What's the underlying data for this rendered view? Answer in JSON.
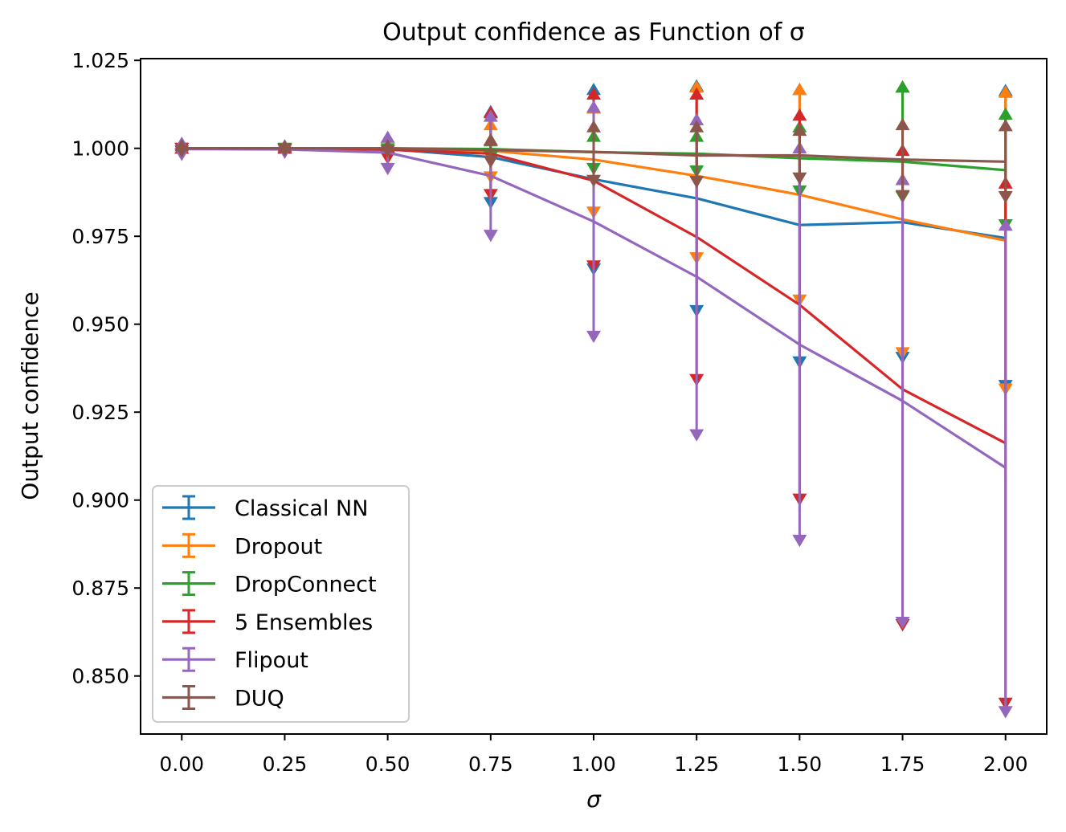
{
  "chart_data": {
    "type": "line",
    "title": "Output confidence as Function of σ",
    "xlabel": "σ",
    "ylabel": "Output confidence",
    "xlim": [
      -0.1,
      2.1
    ],
    "ylim": [
      0.8335,
      1.0255
    ],
    "x": [
      0.0,
      0.25,
      0.5,
      0.75,
      1.0,
      1.25,
      1.5,
      1.75,
      2.0
    ],
    "xticks": [
      "0.00",
      "0.25",
      "0.50",
      "0.75",
      "1.00",
      "1.25",
      "1.50",
      "1.75",
      "2.00"
    ],
    "yticks": [
      "0.850",
      "0.875",
      "0.900",
      "0.925",
      "0.950",
      "0.975",
      "1.000",
      "1.025"
    ],
    "legend_position": "lower-left",
    "series": [
      {
        "name": "Classical NN",
        "color": "#1f77b4",
        "values": [
          1.0,
          1.0,
          0.9998,
          0.9975,
          0.9912,
          0.9858,
          0.9782,
          0.979,
          0.9745
        ],
        "upper": [
          1.0001,
          1.0001,
          1.0003,
          1.0105,
          1.0168,
          1.0178,
          1.0168,
          1.0175,
          1.0165
        ],
        "lower": [
          0.9999,
          0.9999,
          0.9993,
          0.9845,
          0.9656,
          0.9538,
          0.9392,
          0.9405,
          0.9325
        ]
      },
      {
        "name": "Dropout",
        "color": "#ff7f0e",
        "values": [
          1.0,
          1.0,
          0.9999,
          0.9993,
          0.9968,
          0.9922,
          0.9868,
          0.9798,
          0.9738
        ],
        "upper": [
          1.0001,
          1.0001,
          1.0004,
          1.0068,
          1.0115,
          1.0175,
          1.0168,
          1.0175,
          1.016
        ],
        "lower": [
          0.9999,
          0.9999,
          0.9994,
          0.9918,
          0.9818,
          0.9688,
          0.9568,
          0.9418,
          0.9315
        ]
      },
      {
        "name": "DropConnect",
        "color": "#2ca02c",
        "values": [
          1.0,
          1.0,
          1.0,
          0.9998,
          0.9989,
          0.9985,
          0.9972,
          0.9962,
          0.9938
        ],
        "upper": [
          1.0001,
          1.0001,
          1.0002,
          1.0022,
          1.0035,
          1.0035,
          1.0062,
          1.0175,
          1.0098
        ],
        "lower": [
          0.9999,
          0.9999,
          0.9998,
          0.9975,
          0.9942,
          0.9935,
          0.9878,
          0.9862,
          0.9782
        ]
      },
      {
        "name": "5 Ensembles",
        "color": "#d62728",
        "values": [
          1.0,
          0.9999,
          0.9996,
          0.9985,
          0.9908,
          0.9748,
          0.9555,
          0.9315,
          0.9162
        ],
        "upper": [
          1.0001,
          1.0001,
          1.0004,
          1.0102,
          1.0155,
          1.0155,
          1.0095,
          0.9995,
          0.9902
        ],
        "lower": [
          0.9999,
          0.9997,
          0.9972,
          0.9868,
          0.9665,
          0.9342,
          0.9002,
          0.8645,
          0.8422
        ]
      },
      {
        "name": "Flipout",
        "color": "#9467bd",
        "values": [
          0.9998,
          0.9997,
          0.9988,
          0.9922,
          0.9792,
          0.9635,
          0.9442,
          0.9282,
          0.9092
        ],
        "upper": [
          1.0015,
          1.0008,
          1.0032,
          1.0092,
          1.0118,
          1.0082,
          1.0002,
          0.9912,
          0.9782
        ],
        "lower": [
          0.9982,
          0.9988,
          0.9942,
          0.9752,
          0.9465,
          0.9185,
          0.8885,
          0.8652,
          0.8398
        ]
      },
      {
        "name": "DUQ",
        "color": "#8c564b",
        "values": [
          1.0,
          1.0,
          1.0,
          0.9995,
          0.999,
          0.998,
          0.998,
          0.9968,
          0.9962
        ],
        "upper": [
          1.0008,
          1.0005,
          1.0008,
          1.0025,
          1.0062,
          1.0062,
          1.0052,
          1.0068,
          1.0065
        ],
        "lower": [
          0.9992,
          0.9995,
          0.9992,
          0.9962,
          0.9908,
          0.9905,
          0.9915,
          0.9865,
          0.9862
        ]
      }
    ]
  }
}
